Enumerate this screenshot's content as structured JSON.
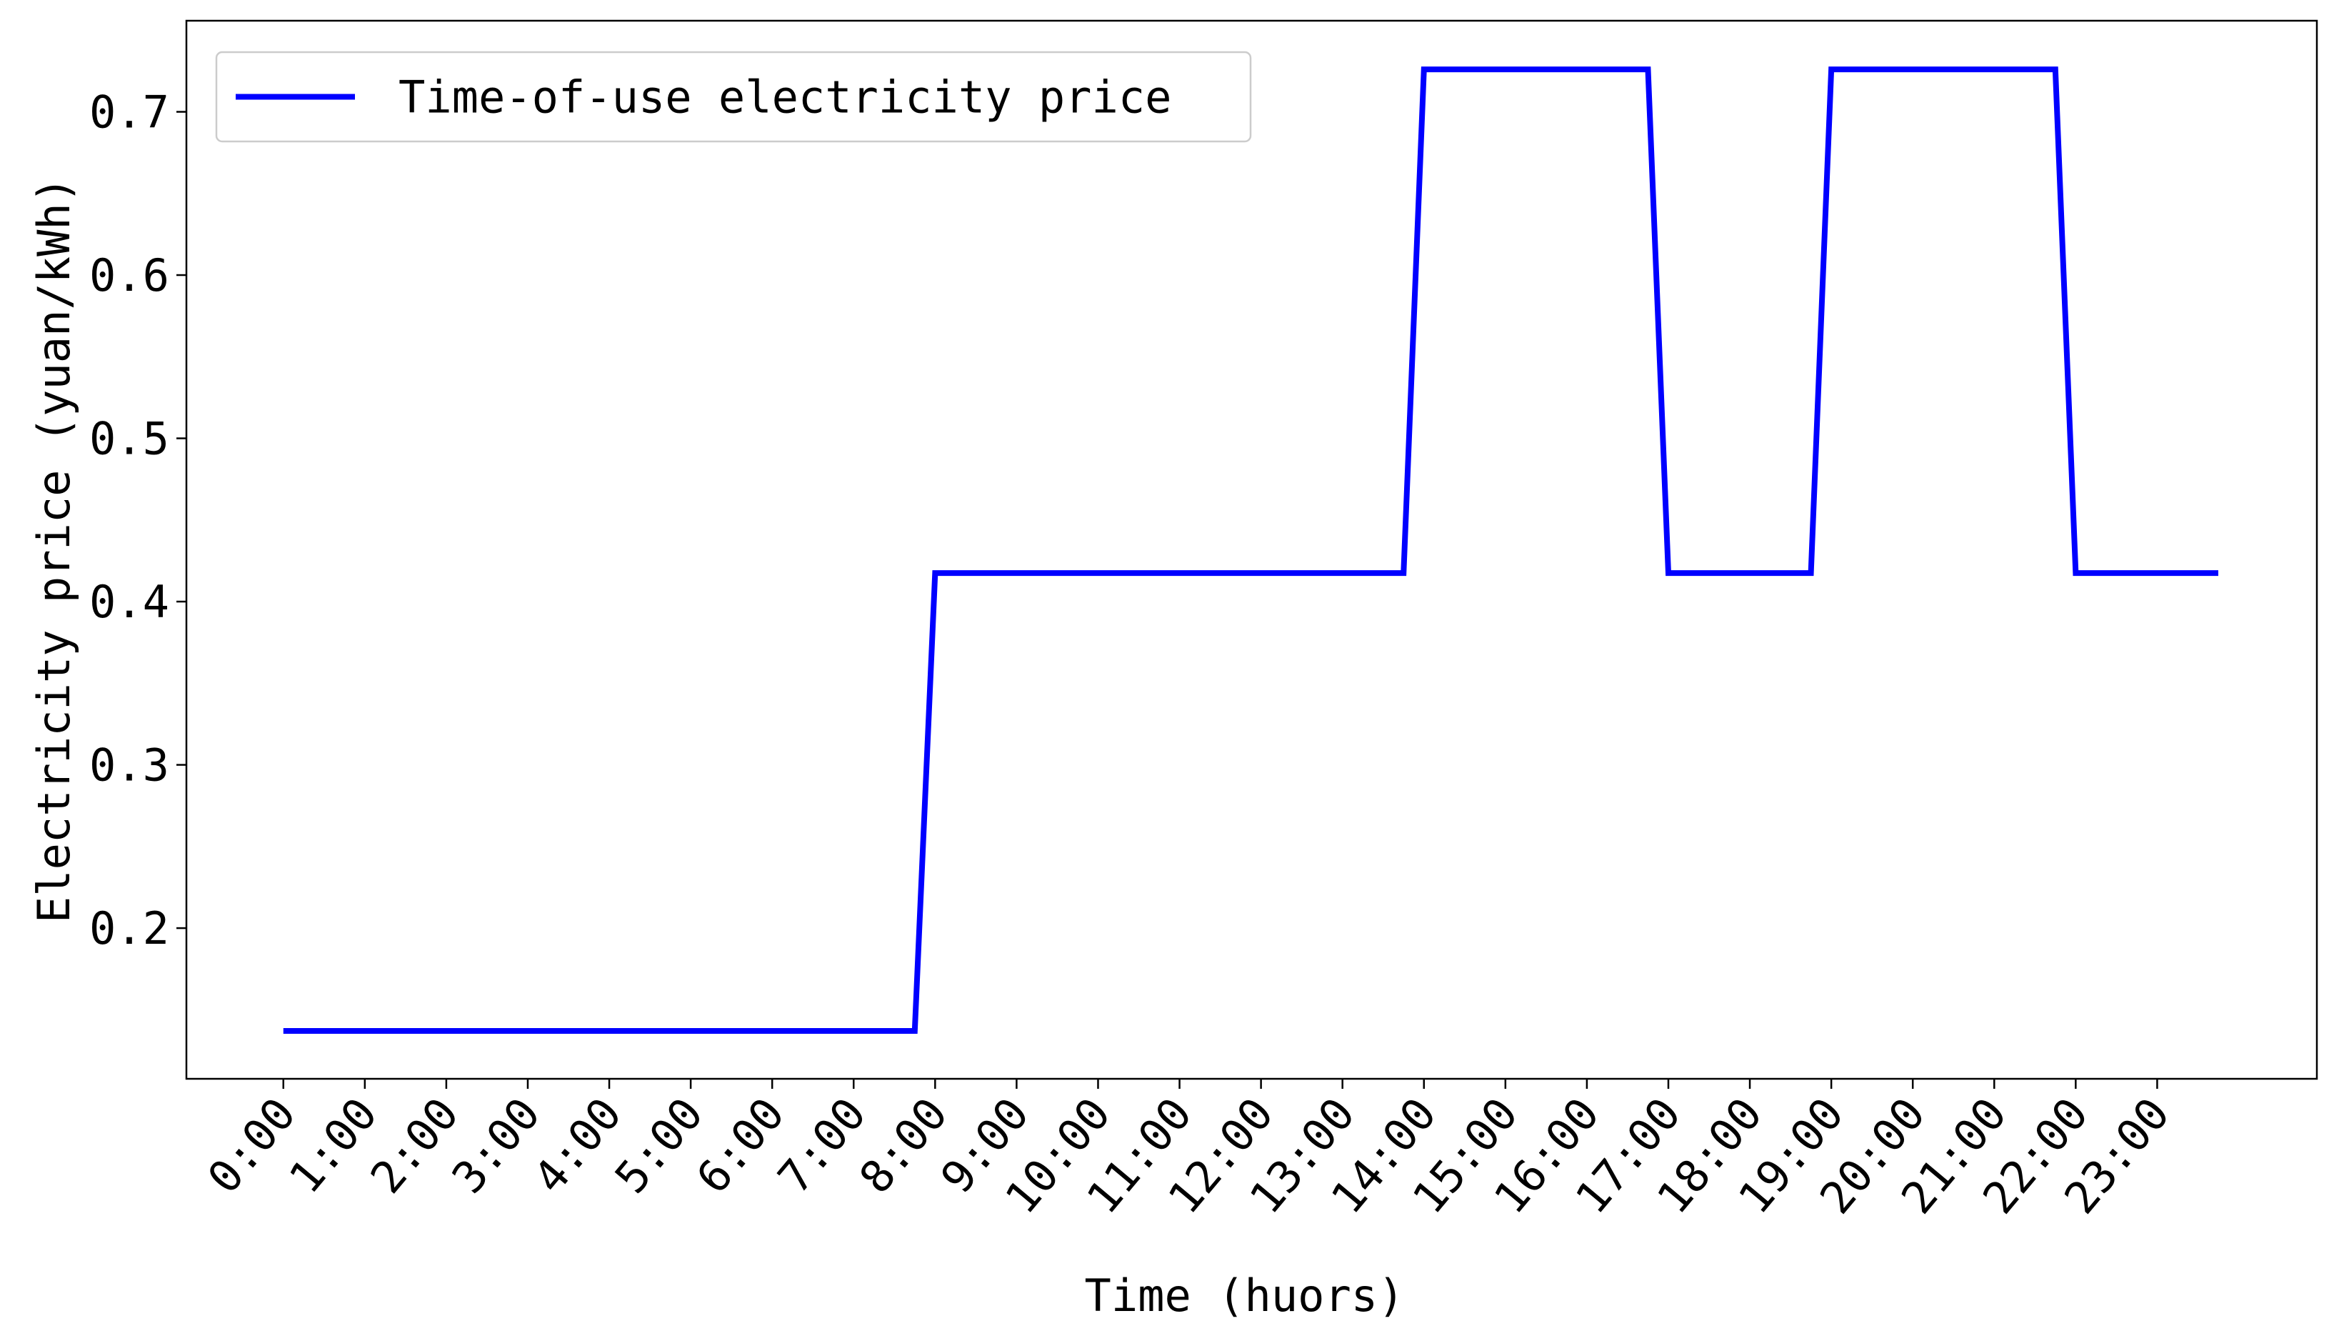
{
  "chart_data": {
    "type": "line",
    "xlabel": "Time (huors)",
    "ylabel": "Electricity price (yuan/kWh)",
    "x": [
      0,
      7.75,
      8,
      13.75,
      14,
      16.75,
      17,
      18.75,
      19,
      21.75,
      22,
      23.75
    ],
    "series": [
      {
        "name": "Time-of-use electricity price",
        "color": "#0000ff",
        "values": [
          0.137,
          0.137,
          0.4175,
          0.4175,
          0.726,
          0.726,
          0.4175,
          0.4175,
          0.726,
          0.726,
          0.4175,
          0.4175
        ]
      }
    ],
    "xlim": [
      -1.19,
      24.96
    ],
    "ylim": [
      0.1077,
      0.7558
    ],
    "xticks": [
      {
        "value": 0,
        "label": "0:00"
      },
      {
        "value": 1,
        "label": "1:00"
      },
      {
        "value": 2,
        "label": "2:00"
      },
      {
        "value": 3,
        "label": "3:00"
      },
      {
        "value": 4,
        "label": "4:00"
      },
      {
        "value": 5,
        "label": "5:00"
      },
      {
        "value": 6,
        "label": "6:00"
      },
      {
        "value": 7,
        "label": "7:00"
      },
      {
        "value": 8,
        "label": "8:00"
      },
      {
        "value": 9,
        "label": "9:00"
      },
      {
        "value": 10,
        "label": "10:00"
      },
      {
        "value": 11,
        "label": "11:00"
      },
      {
        "value": 12,
        "label": "12:00"
      },
      {
        "value": 13,
        "label": "13:00"
      },
      {
        "value": 14,
        "label": "14:00"
      },
      {
        "value": 15,
        "label": "15:00"
      },
      {
        "value": 16,
        "label": "16:00"
      },
      {
        "value": 17,
        "label": "17:00"
      },
      {
        "value": 18,
        "label": "18:00"
      },
      {
        "value": 19,
        "label": "19:00"
      },
      {
        "value": 20,
        "label": "20:00"
      },
      {
        "value": 21,
        "label": "21:00"
      },
      {
        "value": 22,
        "label": "22:00"
      },
      {
        "value": 23,
        "label": "23:00"
      }
    ],
    "yticks": [
      0.2,
      0.3,
      0.4,
      0.5,
      0.6,
      0.7
    ],
    "grid": false,
    "legend": "upper left"
  }
}
